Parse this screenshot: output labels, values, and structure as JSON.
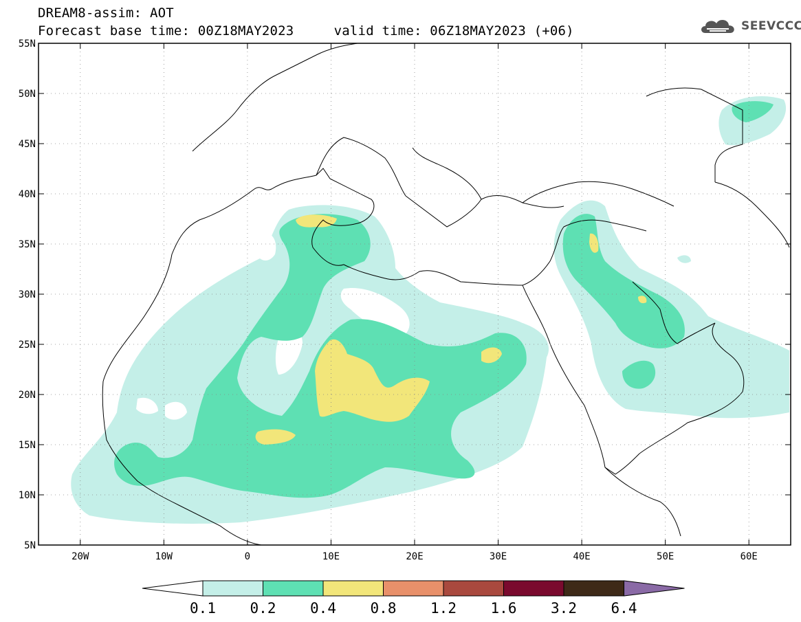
{
  "header": {
    "model_line": "DREAM8-assim: AOT",
    "time_line": "Forecast base time: 00Z18MAY2023     valid time: 06Z18MAY2023 (+06)"
  },
  "logo": {
    "text": "SEEVCCC",
    "icon": "cloud-icon"
  },
  "map": {
    "lon_range": [
      -25,
      65
    ],
    "lat_range": [
      5,
      55
    ],
    "lon_ticks": [
      {
        "value": -20,
        "label": "20W"
      },
      {
        "value": -10,
        "label": "10W"
      },
      {
        "value": 0,
        "label": "0"
      },
      {
        "value": 10,
        "label": "10E"
      },
      {
        "value": 20,
        "label": "20E"
      },
      {
        "value": 30,
        "label": "30E"
      },
      {
        "value": 40,
        "label": "40E"
      },
      {
        "value": 50,
        "label": "50E"
      },
      {
        "value": 60,
        "label": "60E"
      }
    ],
    "lat_ticks": [
      {
        "value": 5,
        "label": "5N"
      },
      {
        "value": 10,
        "label": "10N"
      },
      {
        "value": 15,
        "label": "15N"
      },
      {
        "value": 20,
        "label": "20N"
      },
      {
        "value": 25,
        "label": "25N"
      },
      {
        "value": 30,
        "label": "30N"
      },
      {
        "value": 35,
        "label": "35N"
      },
      {
        "value": 40,
        "label": "40N"
      },
      {
        "value": 45,
        "label": "45N"
      },
      {
        "value": 50,
        "label": "50N"
      },
      {
        "value": 55,
        "label": "55N"
      }
    ],
    "grid": true
  },
  "colorbar": {
    "levels": [
      "0.1",
      "0.2",
      "0.4",
      "0.8",
      "1.2",
      "1.6",
      "3.2",
      "6.4"
    ],
    "colors": [
      "#ffffff",
      "#c4efe8",
      "#5ee0b3",
      "#f2e67a",
      "#e8906a",
      "#a9493e",
      "#7a0a2e",
      "#3e2a18",
      "#8a6aa6"
    ]
  }
}
